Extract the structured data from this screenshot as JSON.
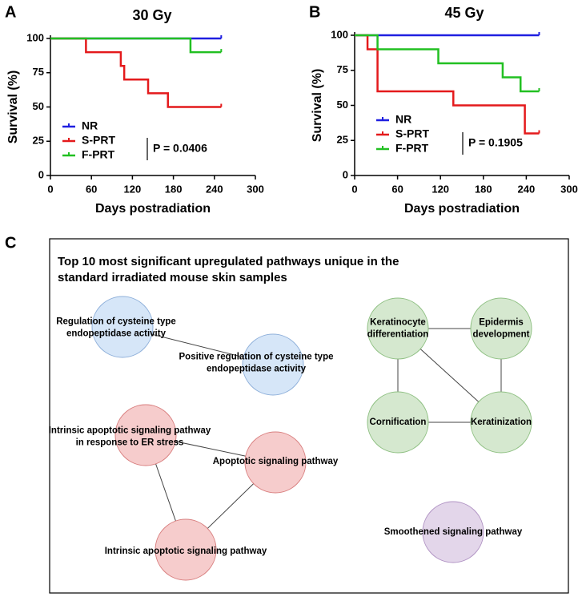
{
  "panel_labels": [
    "A",
    "B",
    "C"
  ],
  "chart_data": [
    {
      "type": "step",
      "title": "30 Gy",
      "x_label": "Days postradiation",
      "y_label": "Survival (%)",
      "xlim": [
        0,
        300
      ],
      "xticks": [
        0,
        60,
        120,
        180,
        240,
        300
      ],
      "ylim": [
        0,
        100
      ],
      "yticks": [
        0,
        25,
        50,
        75,
        100
      ],
      "annotation": "P = 0.0406",
      "series": [
        {
          "name": "NR",
          "color": "#1f1fe0",
          "x": [
            0,
            250
          ],
          "values": [
            100,
            100
          ]
        },
        {
          "name": "S-PRT",
          "color": "#e41a1c",
          "x": [
            0,
            52,
            103,
            108,
            143,
            172,
            250
          ],
          "values": [
            100,
            90,
            80,
            70,
            60,
            50,
            50
          ]
        },
        {
          "name": "F-PRT",
          "color": "#22c022",
          "x": [
            0,
            205,
            250
          ],
          "values": [
            100,
            90,
            90
          ]
        }
      ]
    },
    {
      "type": "step",
      "title": "45 Gy",
      "x_label": "Days postradiation",
      "y_label": "Survival (%)",
      "xlim": [
        0,
        300
      ],
      "xticks": [
        0,
        60,
        120,
        180,
        240,
        300
      ],
      "ylim": [
        0,
        100
      ],
      "yticks": [
        0,
        25,
        50,
        75,
        100
      ],
      "annotation": "P = 0.1905",
      "series": [
        {
          "name": "NR",
          "color": "#1f1fe0",
          "x": [
            0,
            258
          ],
          "values": [
            100,
            100
          ]
        },
        {
          "name": "S-PRT",
          "color": "#e41a1c",
          "x": [
            0,
            18,
            32,
            138,
            238,
            258
          ],
          "values": [
            100,
            90,
            60,
            50,
            30,
            30
          ]
        },
        {
          "name": "F-PRT",
          "color": "#22c022",
          "x": [
            0,
            32,
            117,
            207,
            232,
            258
          ],
          "values": [
            100,
            90,
            80,
            70,
            60,
            60
          ]
        }
      ]
    }
  ],
  "network": {
    "title": [
      "Top 10 most significant upregulated pathways unique in the",
      "standard irradiated mouse skin samples"
    ],
    "nodes": [
      {
        "label": [
          "Regulation of cysteine type",
          "endopeptidase activity"
        ]
      },
      {
        "label": [
          "Positive regulation of cysteine type",
          "endopeptidase activity"
        ]
      },
      {
        "label": [
          "Intrinsic apoptotic signaling pathway",
          "in response to ER stress"
        ]
      },
      {
        "label": [
          "Apoptotic signaling pathway"
        ]
      },
      {
        "label": [
          "Intrinsic apoptotic signaling pathway"
        ]
      },
      {
        "label": [
          "Keratinocyte",
          "differentiation"
        ]
      },
      {
        "label": [
          "Epidermis",
          "development"
        ]
      },
      {
        "label": [
          "Cornification"
        ]
      },
      {
        "label": [
          "Keratinization"
        ]
      },
      {
        "label": [
          "Smoothened signaling pathway"
        ]
      }
    ],
    "edges": [
      [
        0,
        1
      ],
      [
        2,
        3
      ],
      [
        2,
        4
      ],
      [
        3,
        4
      ],
      [
        5,
        6
      ],
      [
        5,
        7
      ],
      [
        5,
        8
      ],
      [
        6,
        8
      ],
      [
        7,
        8
      ]
    ]
  }
}
